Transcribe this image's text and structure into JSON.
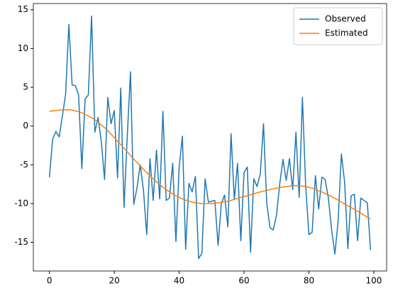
{
  "chart_data": {
    "type": "line",
    "x": [
      0,
      1,
      2,
      3,
      4,
      5,
      6,
      7,
      8,
      9,
      10,
      11,
      12,
      13,
      14,
      15,
      16,
      17,
      18,
      19,
      20,
      21,
      22,
      23,
      24,
      25,
      26,
      27,
      28,
      29,
      30,
      31,
      32,
      33,
      34,
      35,
      36,
      37,
      38,
      39,
      40,
      41,
      42,
      43,
      44,
      45,
      46,
      47,
      48,
      49,
      50,
      51,
      52,
      53,
      54,
      55,
      56,
      57,
      58,
      59,
      60,
      61,
      62,
      63,
      64,
      65,
      66,
      67,
      68,
      69,
      70,
      71,
      72,
      73,
      74,
      75,
      76,
      77,
      78,
      79,
      80,
      81,
      82,
      83,
      84,
      85,
      86,
      87,
      88,
      89,
      90,
      91,
      92,
      93,
      94,
      95,
      96,
      97,
      98,
      99
    ],
    "series": [
      {
        "name": "Observed",
        "color": "#1f77b4",
        "values": [
          -6.6,
          -1.7,
          -0.7,
          -1.4,
          1.3,
          4.1,
          13.1,
          5.3,
          5.2,
          4.0,
          -5.5,
          3.5,
          4.0,
          14.2,
          -0.8,
          1.1,
          -2.0,
          -6.9,
          3.7,
          0.3,
          2.0,
          -6.7,
          4.9,
          -10.5,
          -1.3,
          7.0,
          -10.1,
          -8.0,
          -5.0,
          -8.3,
          -14.0,
          -4.2,
          -9.6,
          -3.1,
          -9.4,
          1.9,
          -9.6,
          -9.3,
          -4.8,
          -14.9,
          -5.3,
          -1.3,
          -15.9,
          -7.4,
          -8.5,
          -6.5,
          -17.1,
          -16.4,
          -6.8,
          -9.8,
          -9.7,
          -9.6,
          -15.4,
          -10.0,
          -8.9,
          -13.0,
          -1.0,
          -9.5,
          -4.8,
          -14.8,
          -6.0,
          -5.3,
          -16.3,
          -6.8,
          -7.8,
          -6.2,
          0.3,
          -10.0,
          -13.1,
          -13.4,
          -11.5,
          -7.5,
          -4.3,
          -7.0,
          -4.2,
          -8.2,
          -0.8,
          -9.2,
          3.7,
          -7.8,
          -14.0,
          -13.7,
          -6.4,
          -10.7,
          -6.6,
          -6.9,
          -9.3,
          -13.4,
          -16.5,
          -12.3,
          -3.6,
          -7.2,
          -15.8,
          -9.0,
          -8.8,
          -14.8,
          -9.3,
          -9.6,
          -9.9,
          -16.0
        ]
      },
      {
        "name": "Estimated",
        "color": "#ff7f0e",
        "values": [
          1.9,
          1.95,
          2.0,
          2.05,
          2.1,
          2.1,
          2.1,
          2.05,
          1.95,
          1.85,
          1.7,
          1.5,
          1.3,
          1.05,
          0.8,
          0.5,
          0.15,
          -0.2,
          -0.6,
          -1.05,
          -1.5,
          -1.95,
          -2.4,
          -2.85,
          -3.3,
          -3.8,
          -4.25,
          -4.7,
          -5.15,
          -5.6,
          -6,
          -6.4,
          -6.8,
          -7.2,
          -7.55,
          -7.9,
          -8.2,
          -8.5,
          -8.75,
          -9.0,
          -9.2,
          -9.4,
          -9.55,
          -9.7,
          -9.8,
          -9.9,
          -9.95,
          -10,
          -10,
          -10,
          -10,
          -9.95,
          -9.9,
          -9.85,
          -9.75,
          -9.7,
          -9.6,
          -9.45,
          -9.35,
          -9.2,
          -9.1,
          -9.0,
          -8.85,
          -8.75,
          -8.6,
          -8.5,
          -8.4,
          -8.3,
          -8.2,
          -8.1,
          -8,
          -7.95,
          -7.85,
          -7.8,
          -7.75,
          -7.7,
          -7.7,
          -7.7,
          -7.75,
          -7.8,
          -7.9,
          -8.0,
          -8.15,
          -8.35,
          -8.5,
          -8.7,
          -8.9,
          -9.1,
          -9.35,
          -9.55,
          -9.8,
          -10.05,
          -10.3,
          -10.5,
          -10.75,
          -11,
          -11.25,
          -11.5,
          -11.75,
          -12
        ]
      }
    ],
    "xlim": [
      -4.95,
      103.95
    ],
    "xticks": [
      0,
      20,
      40,
      60,
      80,
      100
    ],
    "ylim": [
      -18.7,
      15.8
    ],
    "yticks": [
      -15,
      -10,
      -5,
      0,
      5,
      10,
      15
    ],
    "grid": false,
    "legend": "upper right"
  }
}
